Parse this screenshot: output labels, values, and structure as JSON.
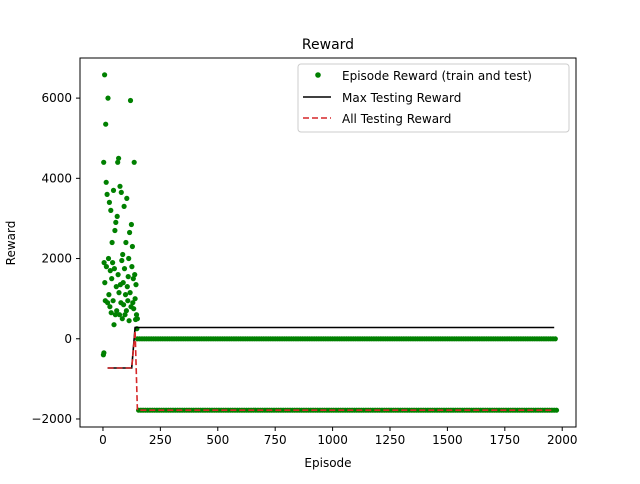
{
  "chart_data": {
    "type": "scatter",
    "title": "Reward",
    "xlabel": "Episode",
    "ylabel": "Reward",
    "xlim": [
      -100,
      2060
    ],
    "ylim": [
      -2200,
      7000
    ],
    "xticks": [
      0,
      250,
      500,
      750,
      1000,
      1250,
      1500,
      1750,
      2000
    ],
    "xtick_labels": [
      "0",
      "250",
      "500",
      "750",
      "1000",
      "1250",
      "1500",
      "1750",
      "2000"
    ],
    "yticks": [
      -2000,
      0,
      2000,
      4000,
      6000
    ],
    "ytick_labels": [
      "−2000",
      "0",
      "2000",
      "4000",
      "6000"
    ],
    "grid": false,
    "legend_position": "top-right",
    "series": [
      {
        "name": "Episode Reward (train and test)",
        "kind": "scatter",
        "color": "#008000",
        "description": "Noisy rewards between about -400 and 6600 for episodes 0-150; afterwards alternating near 0 (train) and -1750 (test) every ~10 episodes up to ~1970.",
        "points": [
          [
            2,
            -400
          ],
          [
            4,
            -350
          ],
          [
            3,
            4400
          ],
          [
            7,
            6580
          ],
          [
            12,
            5350
          ],
          [
            22,
            6000
          ],
          [
            5,
            1900
          ],
          [
            8,
            1400
          ],
          [
            10,
            950
          ],
          [
            14,
            3900
          ],
          [
            15,
            1800
          ],
          [
            18,
            3600
          ],
          [
            20,
            900
          ],
          [
            24,
            2000
          ],
          [
            26,
            1100
          ],
          [
            28,
            3400
          ],
          [
            30,
            800
          ],
          [
            32,
            1700
          ],
          [
            34,
            3200
          ],
          [
            36,
            650
          ],
          [
            38,
            1500
          ],
          [
            40,
            2400
          ],
          [
            42,
            1900
          ],
          [
            44,
            950
          ],
          [
            46,
            3700
          ],
          [
            48,
            350
          ],
          [
            50,
            1750
          ],
          [
            52,
            2700
          ],
          [
            54,
            600
          ],
          [
            56,
            2900
          ],
          [
            58,
            1300
          ],
          [
            60,
            700
          ],
          [
            62,
            3050
          ],
          [
            64,
            4400
          ],
          [
            66,
            1600
          ],
          [
            68,
            4500
          ],
          [
            70,
            1150
          ],
          [
            72,
            600
          ],
          [
            74,
            3800
          ],
          [
            76,
            1350
          ],
          [
            78,
            900
          ],
          [
            80,
            3650
          ],
          [
            82,
            1950
          ],
          [
            84,
            500
          ],
          [
            86,
            2100
          ],
          [
            88,
            1400
          ],
          [
            90,
            850
          ],
          [
            92,
            3300
          ],
          [
            94,
            1750
          ],
          [
            96,
            600
          ],
          [
            98,
            1100
          ],
          [
            100,
            2400
          ],
          [
            102,
            700
          ],
          [
            104,
            3500
          ],
          [
            106,
            1300
          ],
          [
            108,
            950
          ],
          [
            110,
            1550
          ],
          [
            112,
            2000
          ],
          [
            114,
            450
          ],
          [
            116,
            2650
          ],
          [
            118,
            1150
          ],
          [
            120,
            5940
          ],
          [
            122,
            800
          ],
          [
            124,
            2850
          ],
          [
            126,
            1800
          ],
          [
            128,
            2300
          ],
          [
            130,
            900
          ],
          [
            132,
            1500
          ],
          [
            134,
            750
          ],
          [
            136,
            4400
          ],
          [
            138,
            1600
          ],
          [
            140,
            1000
          ],
          [
            142,
            480
          ],
          [
            144,
            1350
          ],
          [
            146,
            600
          ],
          [
            148,
            250
          ],
          [
            150,
            500
          ]
        ],
        "train_level": 0,
        "test_level": -1780,
        "periodic_start": 150,
        "periodic_end": 1970,
        "periodic_step": 10
      },
      {
        "name": "Max Testing Reward",
        "kind": "line",
        "color": "#000000",
        "points": [
          [
            20,
            -730
          ],
          [
            125,
            -730
          ],
          [
            140,
            280
          ],
          [
            1965,
            280
          ]
        ]
      },
      {
        "name": "All Testing Reward",
        "kind": "dashed-line",
        "color": "#d62728",
        "points": [
          [
            20,
            -730
          ],
          [
            125,
            -730
          ],
          [
            140,
            200
          ],
          [
            150,
            -1780
          ],
          [
            1965,
            -1780
          ]
        ]
      }
    ]
  }
}
